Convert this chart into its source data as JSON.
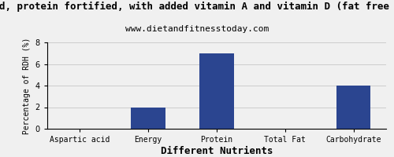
{
  "title_line1": "uid, protein fortified, with added vitamin A and vitamin D (fat free an",
  "title_line2": "www.dietandfitnesstoday.com",
  "categories": [
    "Aspartic acid",
    "Energy",
    "Protein",
    "Total Fat",
    "Carbohydrate"
  ],
  "values": [
    0,
    2,
    7,
    0,
    4
  ],
  "bar_color": "#2b4590",
  "xlabel": "Different Nutrients",
  "ylabel": "Percentage of RDH (%)",
  "ylim": [
    0,
    8
  ],
  "yticks": [
    0,
    2,
    4,
    6,
    8
  ],
  "background_color": "#f0f0f0",
  "title_fontsize": 9,
  "subtitle_fontsize": 8,
  "ylabel_fontsize": 7,
  "tick_fontsize": 7,
  "xlabel_fontsize": 9,
  "grid_color": "#cccccc"
}
